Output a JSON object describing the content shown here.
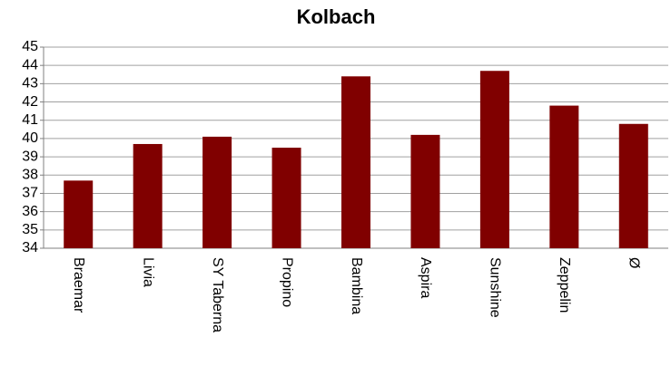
{
  "chart_data": {
    "type": "bar",
    "title": "Kolbach",
    "categories": [
      "Braemar",
      "Livia",
      "SY Taberna",
      "Propino",
      "Bambina",
      "Aspira",
      "Sunshine",
      "Zeppelin",
      "Ø"
    ],
    "values": [
      37.7,
      39.7,
      40.1,
      39.5,
      43.4,
      40.2,
      43.7,
      41.8,
      40.8
    ],
    "color": "#800000",
    "ylim": [
      34,
      45
    ],
    "yticks": [
      34,
      35,
      36,
      37,
      38,
      39,
      40,
      41,
      42,
      43,
      44,
      45
    ],
    "grid": true
  }
}
